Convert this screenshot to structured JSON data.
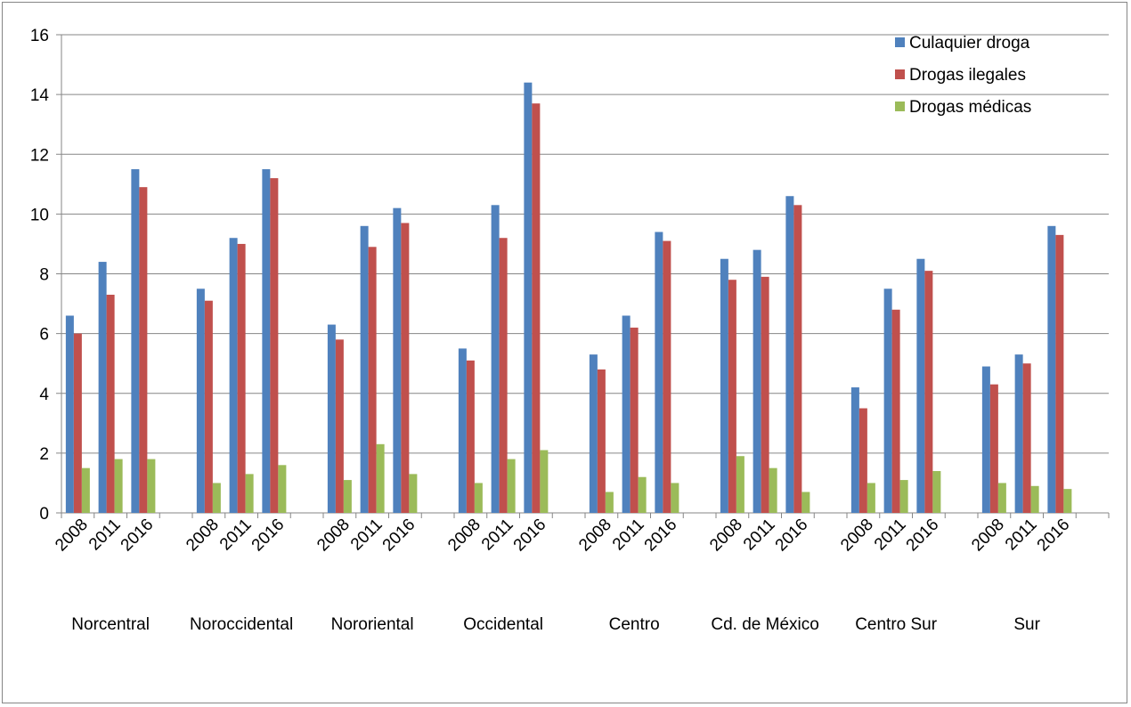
{
  "chart_data": {
    "type": "bar",
    "title": "",
    "xlabel": "",
    "ylabel": "",
    "ylim": [
      0,
      16
    ],
    "yticks": [
      0,
      2,
      4,
      6,
      8,
      10,
      12,
      14,
      16
    ],
    "grid": true,
    "legend_position": "top-right",
    "groups": [
      "Norcentral",
      "Noroccidental",
      "Nororiental",
      "Occidental",
      "Centro",
      "Cd. de México",
      "Centro Sur",
      "Sur"
    ],
    "years": [
      "2008",
      "2011",
      "2016"
    ],
    "series": [
      {
        "name": "Culaquier droga",
        "color": "#4F81BD",
        "values": [
          [
            6.6,
            8.4,
            11.5
          ],
          [
            7.5,
            9.2,
            11.5
          ],
          [
            6.3,
            9.6,
            10.2
          ],
          [
            5.5,
            10.3,
            14.4
          ],
          [
            5.3,
            6.6,
            9.4
          ],
          [
            8.5,
            8.8,
            10.6
          ],
          [
            4.2,
            7.5,
            8.5
          ],
          [
            4.9,
            5.3,
            9.6
          ]
        ]
      },
      {
        "name": "Drogas ilegales",
        "color": "#C0504D",
        "values": [
          [
            6.0,
            7.3,
            10.9
          ],
          [
            7.1,
            9.0,
            11.2
          ],
          [
            5.8,
            8.9,
            9.7
          ],
          [
            5.1,
            9.2,
            13.7
          ],
          [
            4.8,
            6.2,
            9.1
          ],
          [
            7.8,
            7.9,
            10.3
          ],
          [
            3.5,
            6.8,
            8.1
          ],
          [
            4.3,
            5.0,
            9.3
          ]
        ]
      },
      {
        "name": "Drogas médicas",
        "color": "#9BBB59",
        "values": [
          [
            1.5,
            1.8,
            1.8
          ],
          [
            1.0,
            1.3,
            1.6
          ],
          [
            1.1,
            2.3,
            1.3
          ],
          [
            1.0,
            1.8,
            2.1
          ],
          [
            0.7,
            1.2,
            1.0
          ],
          [
            1.9,
            1.5,
            0.7
          ],
          [
            1.0,
            1.1,
            1.4
          ],
          [
            1.0,
            0.9,
            0.8
          ]
        ]
      }
    ]
  }
}
